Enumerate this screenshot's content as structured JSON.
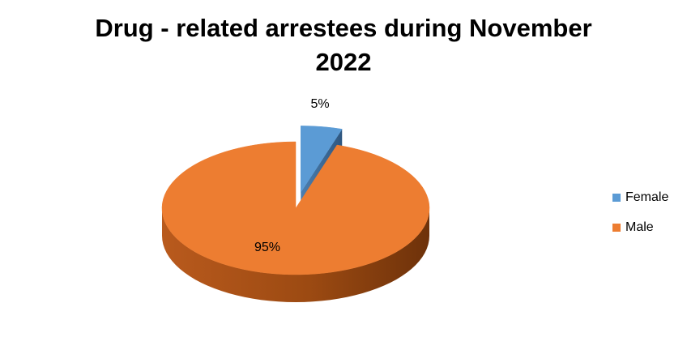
{
  "chart_data": {
    "type": "pie",
    "title_lines": [
      "Drug - related arrestees during November",
      "2022"
    ],
    "categories": [
      "Female",
      "Male"
    ],
    "values": [
      5,
      95
    ],
    "data_labels": [
      "5%",
      "95%"
    ],
    "colors": [
      "#5B9BD5",
      "#ED7D31"
    ],
    "side_colors": [
      "#3F6E99",
      "#A64F16"
    ],
    "legend_position": "right",
    "style": "3d-exploded"
  }
}
